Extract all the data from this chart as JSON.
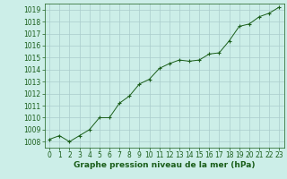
{
  "x": [
    0,
    1,
    2,
    3,
    4,
    5,
    6,
    7,
    8,
    9,
    10,
    11,
    12,
    13,
    14,
    15,
    16,
    17,
    18,
    19,
    20,
    21,
    22,
    23
  ],
  "y": [
    1008.2,
    1008.5,
    1008.0,
    1008.5,
    1009.0,
    1010.0,
    1010.0,
    1011.2,
    1011.8,
    1012.8,
    1013.2,
    1014.1,
    1014.5,
    1014.8,
    1014.7,
    1014.8,
    1015.3,
    1015.4,
    1016.4,
    1017.6,
    1017.8,
    1018.4,
    1018.7,
    1019.2
  ],
  "ylim": [
    1007.5,
    1019.5
  ],
  "yticks": [
    1008,
    1009,
    1010,
    1011,
    1012,
    1013,
    1014,
    1015,
    1016,
    1017,
    1018,
    1019
  ],
  "xlim": [
    -0.5,
    23.5
  ],
  "xticks": [
    0,
    1,
    2,
    3,
    4,
    5,
    6,
    7,
    8,
    9,
    10,
    11,
    12,
    13,
    14,
    15,
    16,
    17,
    18,
    19,
    20,
    21,
    22,
    23
  ],
  "line_color": "#1a5e1a",
  "marker_color": "#1a5e1a",
  "bg_color": "#cceee8",
  "grid_color": "#aacccc",
  "xlabel": "Graphe pression niveau de la mer (hPa)",
  "xlabel_color": "#1a5e1a",
  "tick_color": "#1a5e1a",
  "font_size_ticks": 5.5,
  "font_size_xlabel": 6.5
}
